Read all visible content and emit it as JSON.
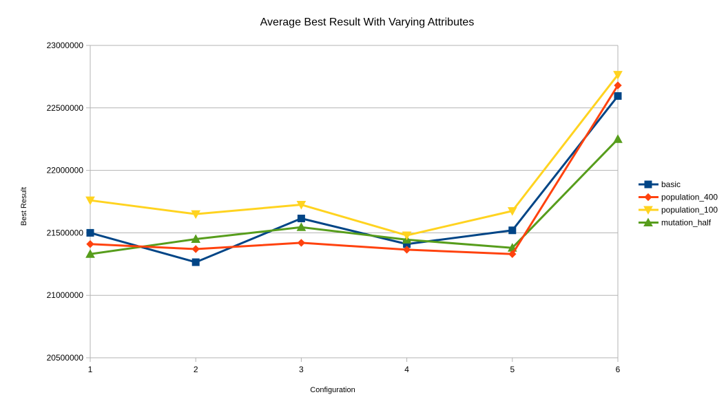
{
  "chart_data": {
    "type": "line",
    "title": "Average Best Result With Varying Attributes",
    "xlabel": "Configuration",
    "ylabel": "Best Result",
    "categories": [
      "1",
      "2",
      "3",
      "4",
      "5",
      "6"
    ],
    "ylim": [
      20500000,
      23000000
    ],
    "yticks": [
      "20500000",
      "21000000",
      "21500000",
      "22000000",
      "22500000",
      "23000000"
    ],
    "grid": true,
    "legend_position": "right",
    "series": [
      {
        "name": "basic",
        "color": "#004586",
        "marker": "square",
        "values": [
          21500000,
          21265000,
          21615000,
          21410000,
          21520000,
          22595000
        ]
      },
      {
        "name": "population_400",
        "color": "#ff420e",
        "marker": "diamond",
        "values": [
          21410000,
          21370000,
          21420000,
          21365000,
          21330000,
          22680000
        ]
      },
      {
        "name": "population_100",
        "color": "#ffd320",
        "marker": "triangle-down",
        "values": [
          21760000,
          21650000,
          21725000,
          21480000,
          21675000,
          22765000
        ]
      },
      {
        "name": "mutation_half",
        "color": "#579d1c",
        "marker": "triangle-up",
        "values": [
          21330000,
          21450000,
          21545000,
          21445000,
          21380000,
          22250000
        ]
      }
    ]
  }
}
